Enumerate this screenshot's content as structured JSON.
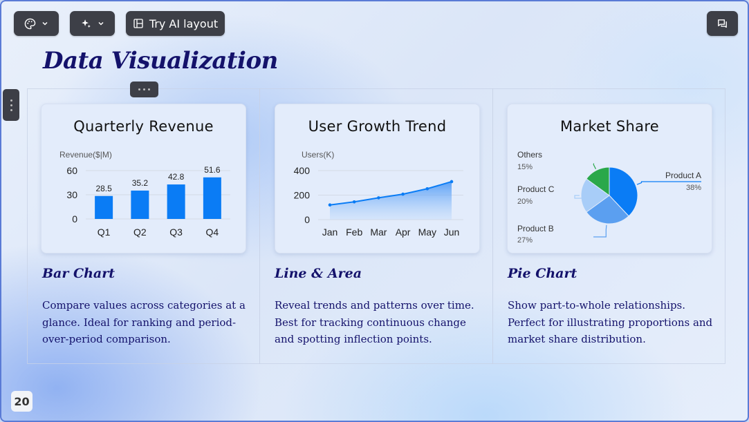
{
  "toolbar": {
    "theme_icon": "palette-icon",
    "ai_icon": "sparkle-icon",
    "try_ai_label": "Try AI layout",
    "layout_icon": "layout-icon",
    "comment_icon": "comment-icon"
  },
  "slide": {
    "title": "Data Visualization",
    "page_number": "20"
  },
  "columns": [
    {
      "card_title": "Quarterly Revenue",
      "heading": "Bar Chart",
      "description": "Compare values across categories at a glance. Ideal for ranking and period-over-period comparison."
    },
    {
      "card_title": "User Growth Trend",
      "heading": "Line & Area",
      "description": "Reveal trends and patterns over time. Best for tracking continuous change and spotting inflection points."
    },
    {
      "card_title": "Market Share",
      "heading": "Pie Chart",
      "description": "Show part-to-whole relationships. Perfect for illustrating proportions and market share distribution."
    }
  ],
  "chart_data": [
    {
      "type": "bar",
      "title": "Quarterly Revenue",
      "ylabel": "Revenue($|M)",
      "categories": [
        "Q1",
        "Q2",
        "Q3",
        "Q4"
      ],
      "values": [
        28.5,
        35.2,
        42.8,
        51.6
      ],
      "ylim": [
        0,
        60
      ],
      "yticks": [
        0,
        30,
        60
      ],
      "color": "#0a7cf5"
    },
    {
      "type": "area",
      "title": "User Growth Trend",
      "ylabel": "Users(K)",
      "categories": [
        "Jan",
        "Feb",
        "Mar",
        "Apr",
        "May",
        "Jun"
      ],
      "values": [
        120,
        145,
        178,
        208,
        252,
        310
      ],
      "ylim": [
        0,
        400
      ],
      "yticks": [
        0,
        200,
        400
      ],
      "color": "#0a7cf5"
    },
    {
      "type": "pie",
      "title": "Market Share",
      "slices": [
        {
          "label": "Product A",
          "value": 38,
          "pct": "38%",
          "color": "#0a7cf5"
        },
        {
          "label": "Product B",
          "value": 27,
          "pct": "27%",
          "color": "#5b9ff0"
        },
        {
          "label": "Product C",
          "value": 20,
          "pct": "20%",
          "color": "#a8cdf8"
        },
        {
          "label": "Others",
          "value": 15,
          "pct": "15%",
          "color": "#2aa84a"
        }
      ]
    }
  ]
}
